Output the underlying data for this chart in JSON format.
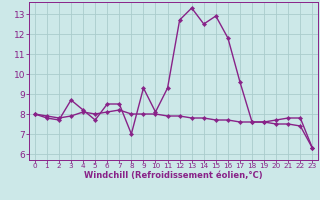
{
  "xlabel": "Windchill (Refroidissement éolien,°C)",
  "background_color": "#cce8e8",
  "line_color": "#882288",
  "xlim": [
    -0.5,
    23.5
  ],
  "ylim": [
    5.7,
    13.6
  ],
  "yticks": [
    6,
    7,
    8,
    9,
    10,
    11,
    12,
    13
  ],
  "xticks": [
    0,
    1,
    2,
    3,
    4,
    5,
    6,
    7,
    8,
    9,
    10,
    11,
    12,
    13,
    14,
    15,
    16,
    17,
    18,
    19,
    20,
    21,
    22,
    23
  ],
  "x": [
    0,
    1,
    2,
    3,
    4,
    5,
    6,
    7,
    8,
    9,
    10,
    11,
    12,
    13,
    14,
    15,
    16,
    17,
    18,
    19,
    20,
    21,
    22,
    23
  ],
  "series": [
    [
      8.0,
      7.8,
      7.7,
      8.7,
      8.2,
      7.7,
      8.5,
      8.5,
      7.0,
      9.3,
      8.1,
      9.3,
      12.7,
      13.3,
      12.5,
      12.9,
      11.8,
      9.6,
      7.6,
      7.6,
      7.7,
      7.8,
      7.8,
      6.3
    ],
    [
      8.0,
      7.9,
      7.8,
      7.9,
      8.1,
      8.0,
      8.1,
      8.2,
      8.0,
      8.0,
      8.0,
      7.9,
      7.9,
      7.8,
      7.8,
      7.7,
      7.7,
      7.6,
      7.6,
      7.6,
      7.5,
      7.5,
      7.4,
      6.3
    ]
  ],
  "grid_color": "#aacccc",
  "tick_color": "#882288",
  "axis_color": "#882288",
  "font_color": "#882288",
  "marker": "D",
  "markersize": 2.2,
  "linewidth": 1.0,
  "xlabel_fontsize": 6.0,
  "tick_fontsize_x": 5.2,
  "tick_fontsize_y": 6.5
}
